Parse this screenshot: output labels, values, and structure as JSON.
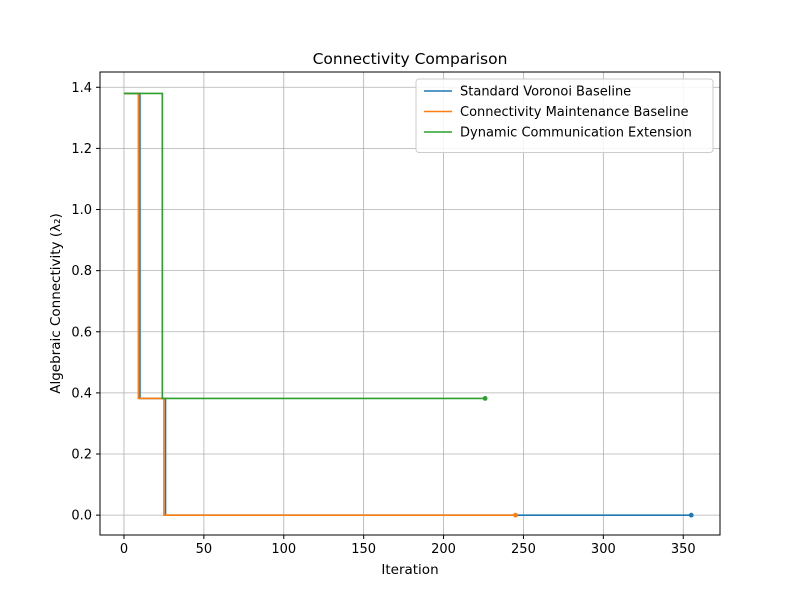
{
  "chart_data": {
    "type": "line",
    "title": "Connectivity Comparison",
    "xlabel": "Iteration",
    "ylabel": "Algebraic Connectivity (λ₂)",
    "xlim": [
      -15,
      373
    ],
    "ylim": [
      -0.065,
      1.45
    ],
    "xticks": [
      0,
      50,
      100,
      150,
      200,
      250,
      300,
      350
    ],
    "yticks": [
      0.0,
      0.2,
      0.4,
      0.6,
      0.8,
      1.0,
      1.2,
      1.4
    ],
    "xtick_labels": [
      "0",
      "50",
      "100",
      "150",
      "200",
      "250",
      "300",
      "350"
    ],
    "ytick_labels": [
      "0.0",
      "0.2",
      "0.4",
      "0.6",
      "0.8",
      "1.0",
      "1.2",
      "1.4"
    ],
    "grid": true,
    "legend_position": "upper right",
    "series": [
      {
        "name": "Standard Voronoi Baseline",
        "color": "#1f77b4",
        "x": [
          0,
          10,
          10,
          26,
          26,
          355
        ],
        "y": [
          1.38,
          1.38,
          0.382,
          0.382,
          0.0,
          0.0
        ],
        "end_marker": true
      },
      {
        "name": "Connectivity Maintenance Baseline",
        "color": "#ff7f0e",
        "x": [
          0,
          9,
          9,
          25,
          25,
          245
        ],
        "y": [
          1.38,
          1.38,
          0.382,
          0.382,
          0.0,
          0.0
        ],
        "end_marker": true
      },
      {
        "name": "Dynamic Communication Extension",
        "color": "#2ca02c",
        "x": [
          0,
          24,
          24,
          226
        ],
        "y": [
          1.38,
          1.38,
          0.382,
          0.382
        ],
        "end_marker": true
      }
    ]
  }
}
